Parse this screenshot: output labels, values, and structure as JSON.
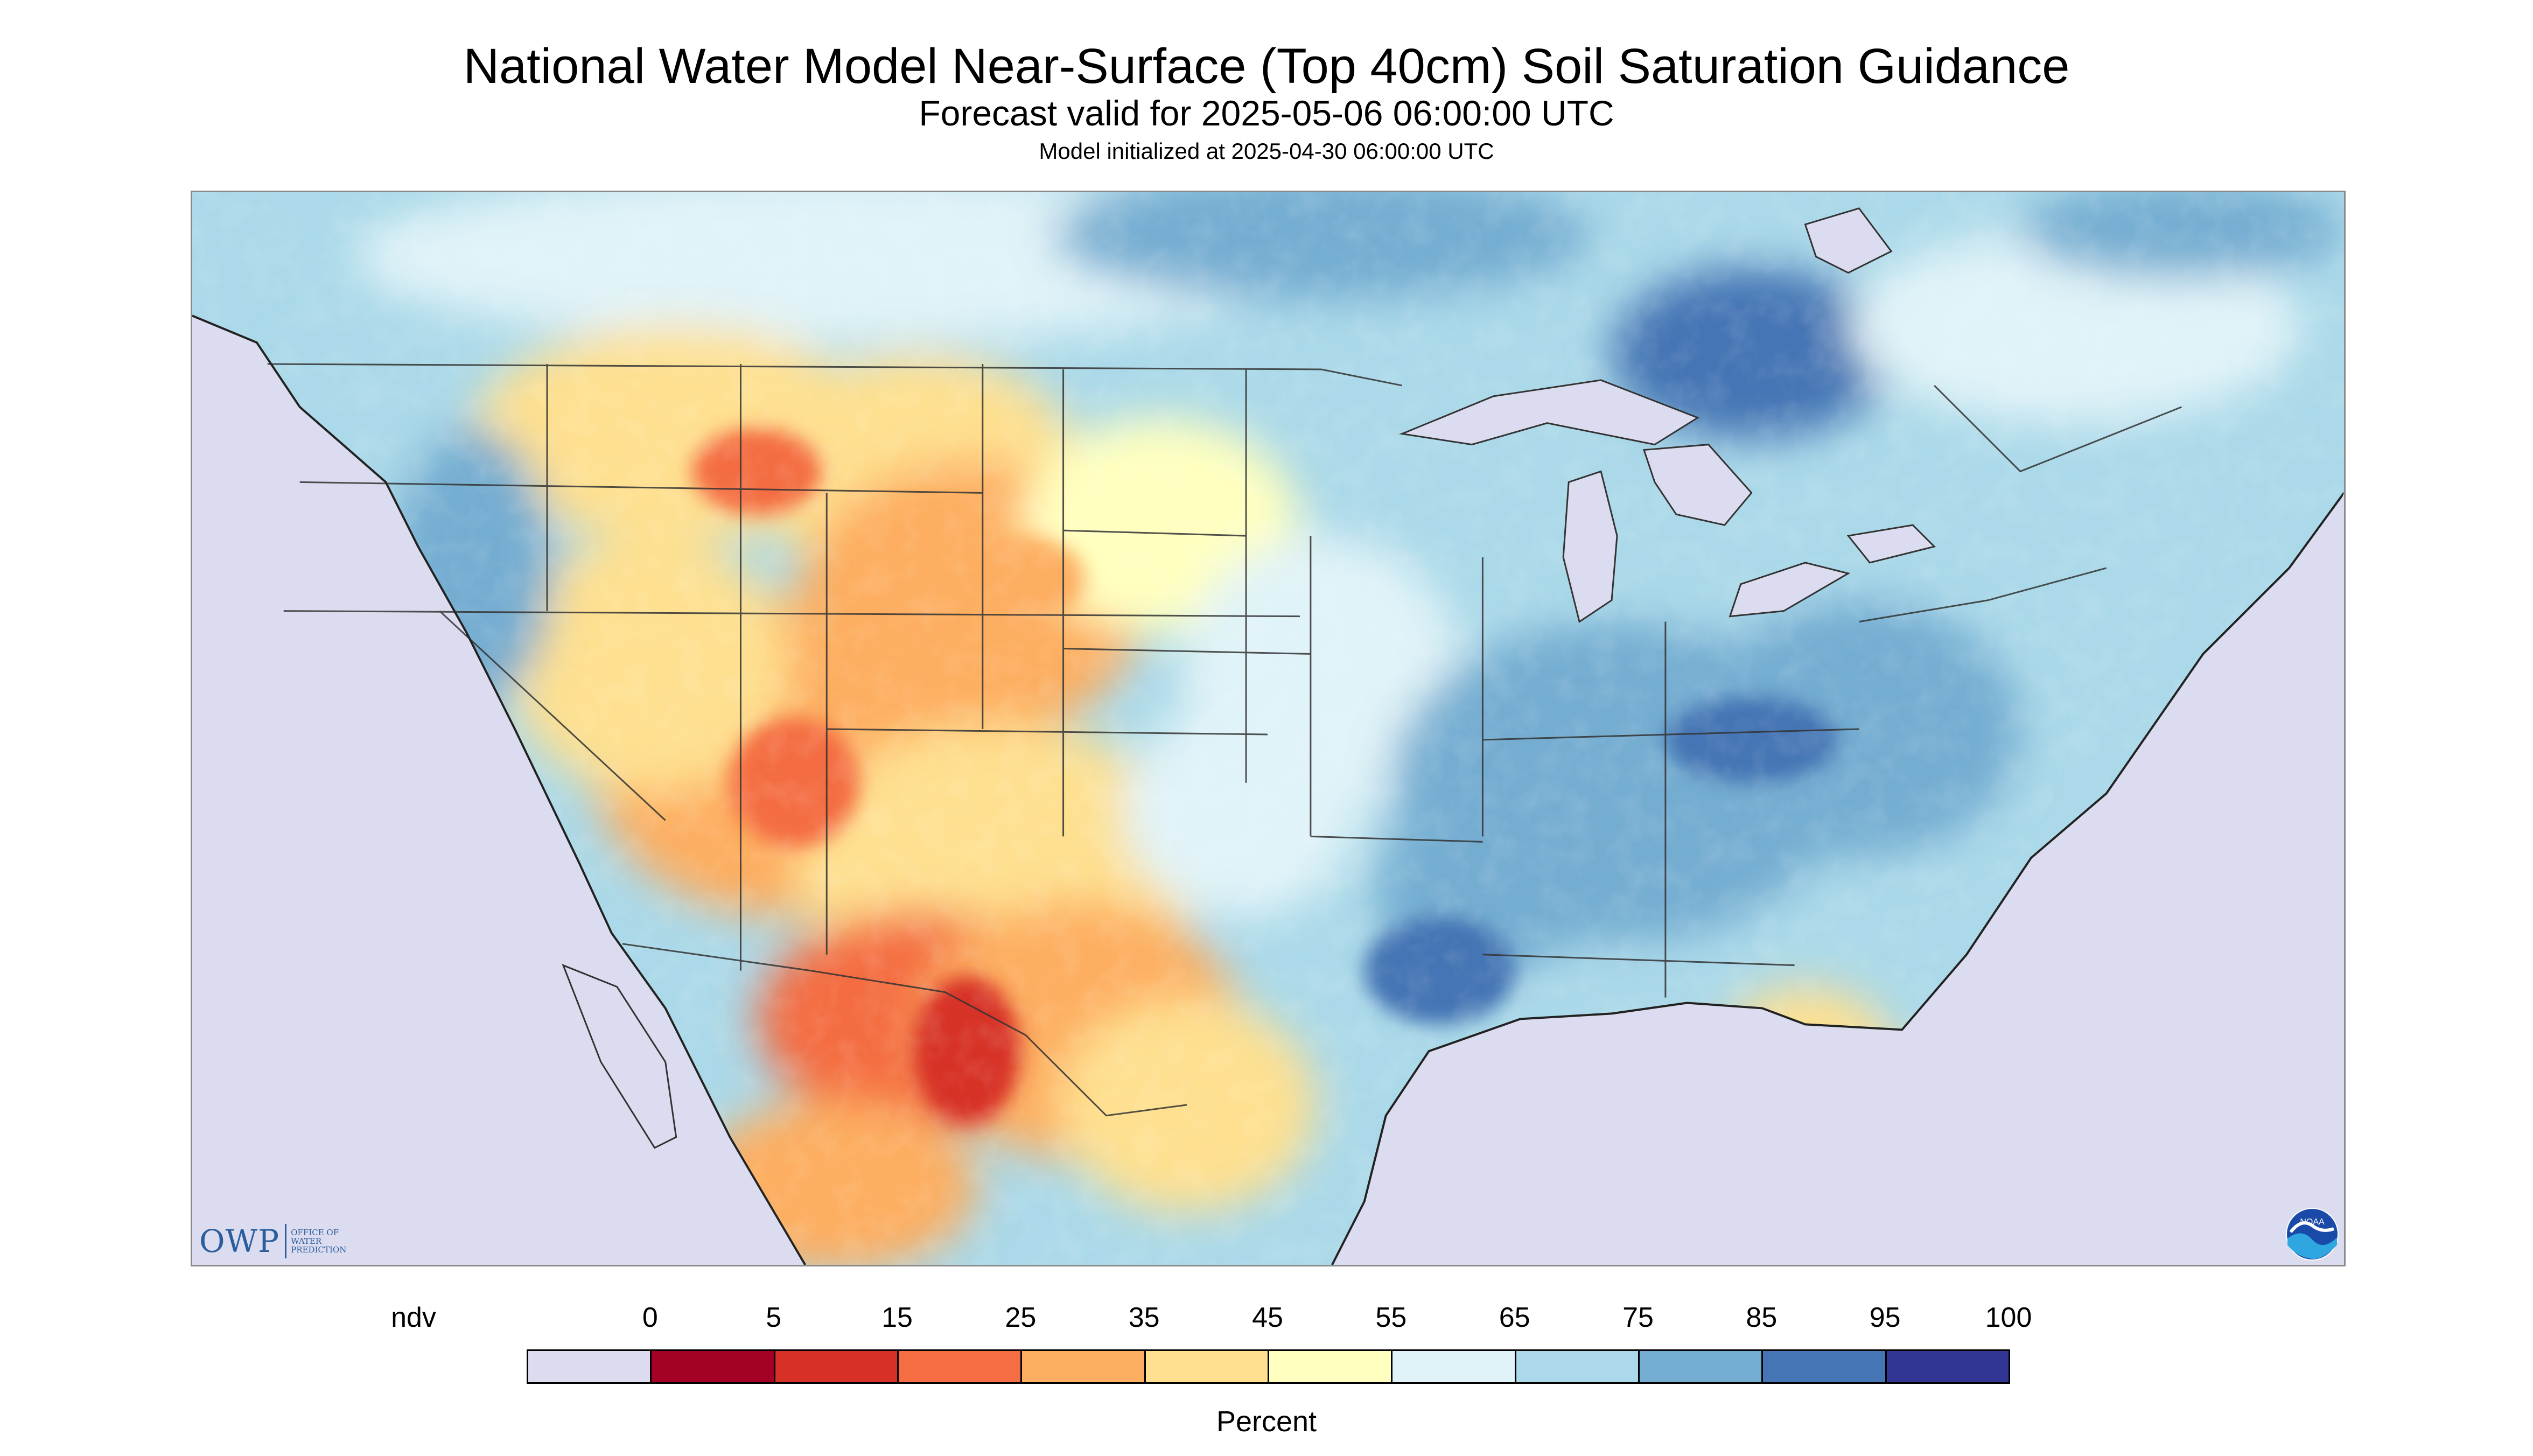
{
  "header": {
    "title": "National Water Model Near-Surface (Top 40cm) Soil Saturation Guidance",
    "subtitle": "Forecast valid for 2025-05-06 06:00:00 UTC",
    "initialized": "Model initialized at 2025-04-30 06:00:00 UTC"
  },
  "map": {
    "type": "choropleth-raster",
    "region": "Continental United States, southern Canada, northern Mexico",
    "colors": {
      "ndv_background": "#dcdcf0",
      "water": "#dcdcf0",
      "border": "#333333"
    },
    "logos": {
      "owp_mark": "OWP",
      "owp_text": "OFFICE OF\nWATER\nPREDICTION",
      "noaa_text": "NOAA",
      "owp_icon": "owp-logo",
      "noaa_icon": "noaa-logo"
    }
  },
  "legend": {
    "title": "Percent",
    "tick_labels": [
      "ndv",
      "0",
      "5",
      "15",
      "25",
      "35",
      "45",
      "55",
      "65",
      "75",
      "85",
      "95",
      "100"
    ],
    "bins": [
      {
        "label": "ndv",
        "color": "#dcdcf0"
      },
      {
        "label": "0-5",
        "color": "#a50026"
      },
      {
        "label": "5-15",
        "color": "#d73027"
      },
      {
        "label": "15-25",
        "color": "#f46d43"
      },
      {
        "label": "25-35",
        "color": "#fdae61"
      },
      {
        "label": "35-45",
        "color": "#fee090"
      },
      {
        "label": "45-55",
        "color": "#ffffbf"
      },
      {
        "label": "55-65",
        "color": "#e0f3f8"
      },
      {
        "label": "65-75",
        "color": "#abd9e9"
      },
      {
        "label": "75-85",
        "color": "#74add1"
      },
      {
        "label": "85-95",
        "color": "#4575b4"
      },
      {
        "label": "95-100",
        "color": "#313695"
      }
    ]
  }
}
